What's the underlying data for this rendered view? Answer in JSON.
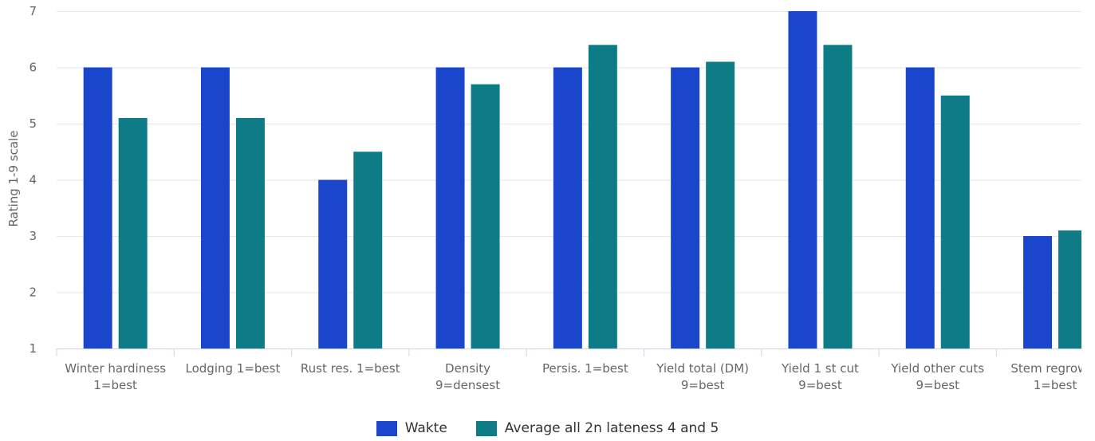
{
  "chart_data": {
    "type": "bar",
    "title": "",
    "ylabel": "Rating 1-9 scale",
    "xlabel": "",
    "ylim": [
      1,
      7
    ],
    "yticks": [
      1,
      2,
      3,
      4,
      5,
      6,
      7
    ],
    "grid": true,
    "legend_position": "bottom-center",
    "categories": [
      [
        "Winter hardiness",
        "1=best"
      ],
      [
        "Lodging 1=best"
      ],
      [
        "Rust res. 1=best"
      ],
      [
        "Density",
        "9=densest"
      ],
      [
        "Persis. 1=best"
      ],
      [
        "Yield total (DM)",
        "9=best"
      ],
      [
        "Yield 1 st cut",
        "9=best"
      ],
      [
        "Yield other cuts",
        "9=best"
      ],
      [
        "Stem regrowth",
        "1=best"
      ]
    ],
    "series": [
      {
        "name": "Wakte",
        "color": "#1a46cc",
        "values": [
          6,
          6,
          4,
          6,
          6,
          6,
          7,
          6,
          3
        ]
      },
      {
        "name": "Average all 2n lateness 4 and 5",
        "color": "#0e7c86",
        "values": [
          5.1,
          5.1,
          4.5,
          5.7,
          6.4,
          6.1,
          6.4,
          5.5,
          3.1
        ]
      }
    ]
  }
}
